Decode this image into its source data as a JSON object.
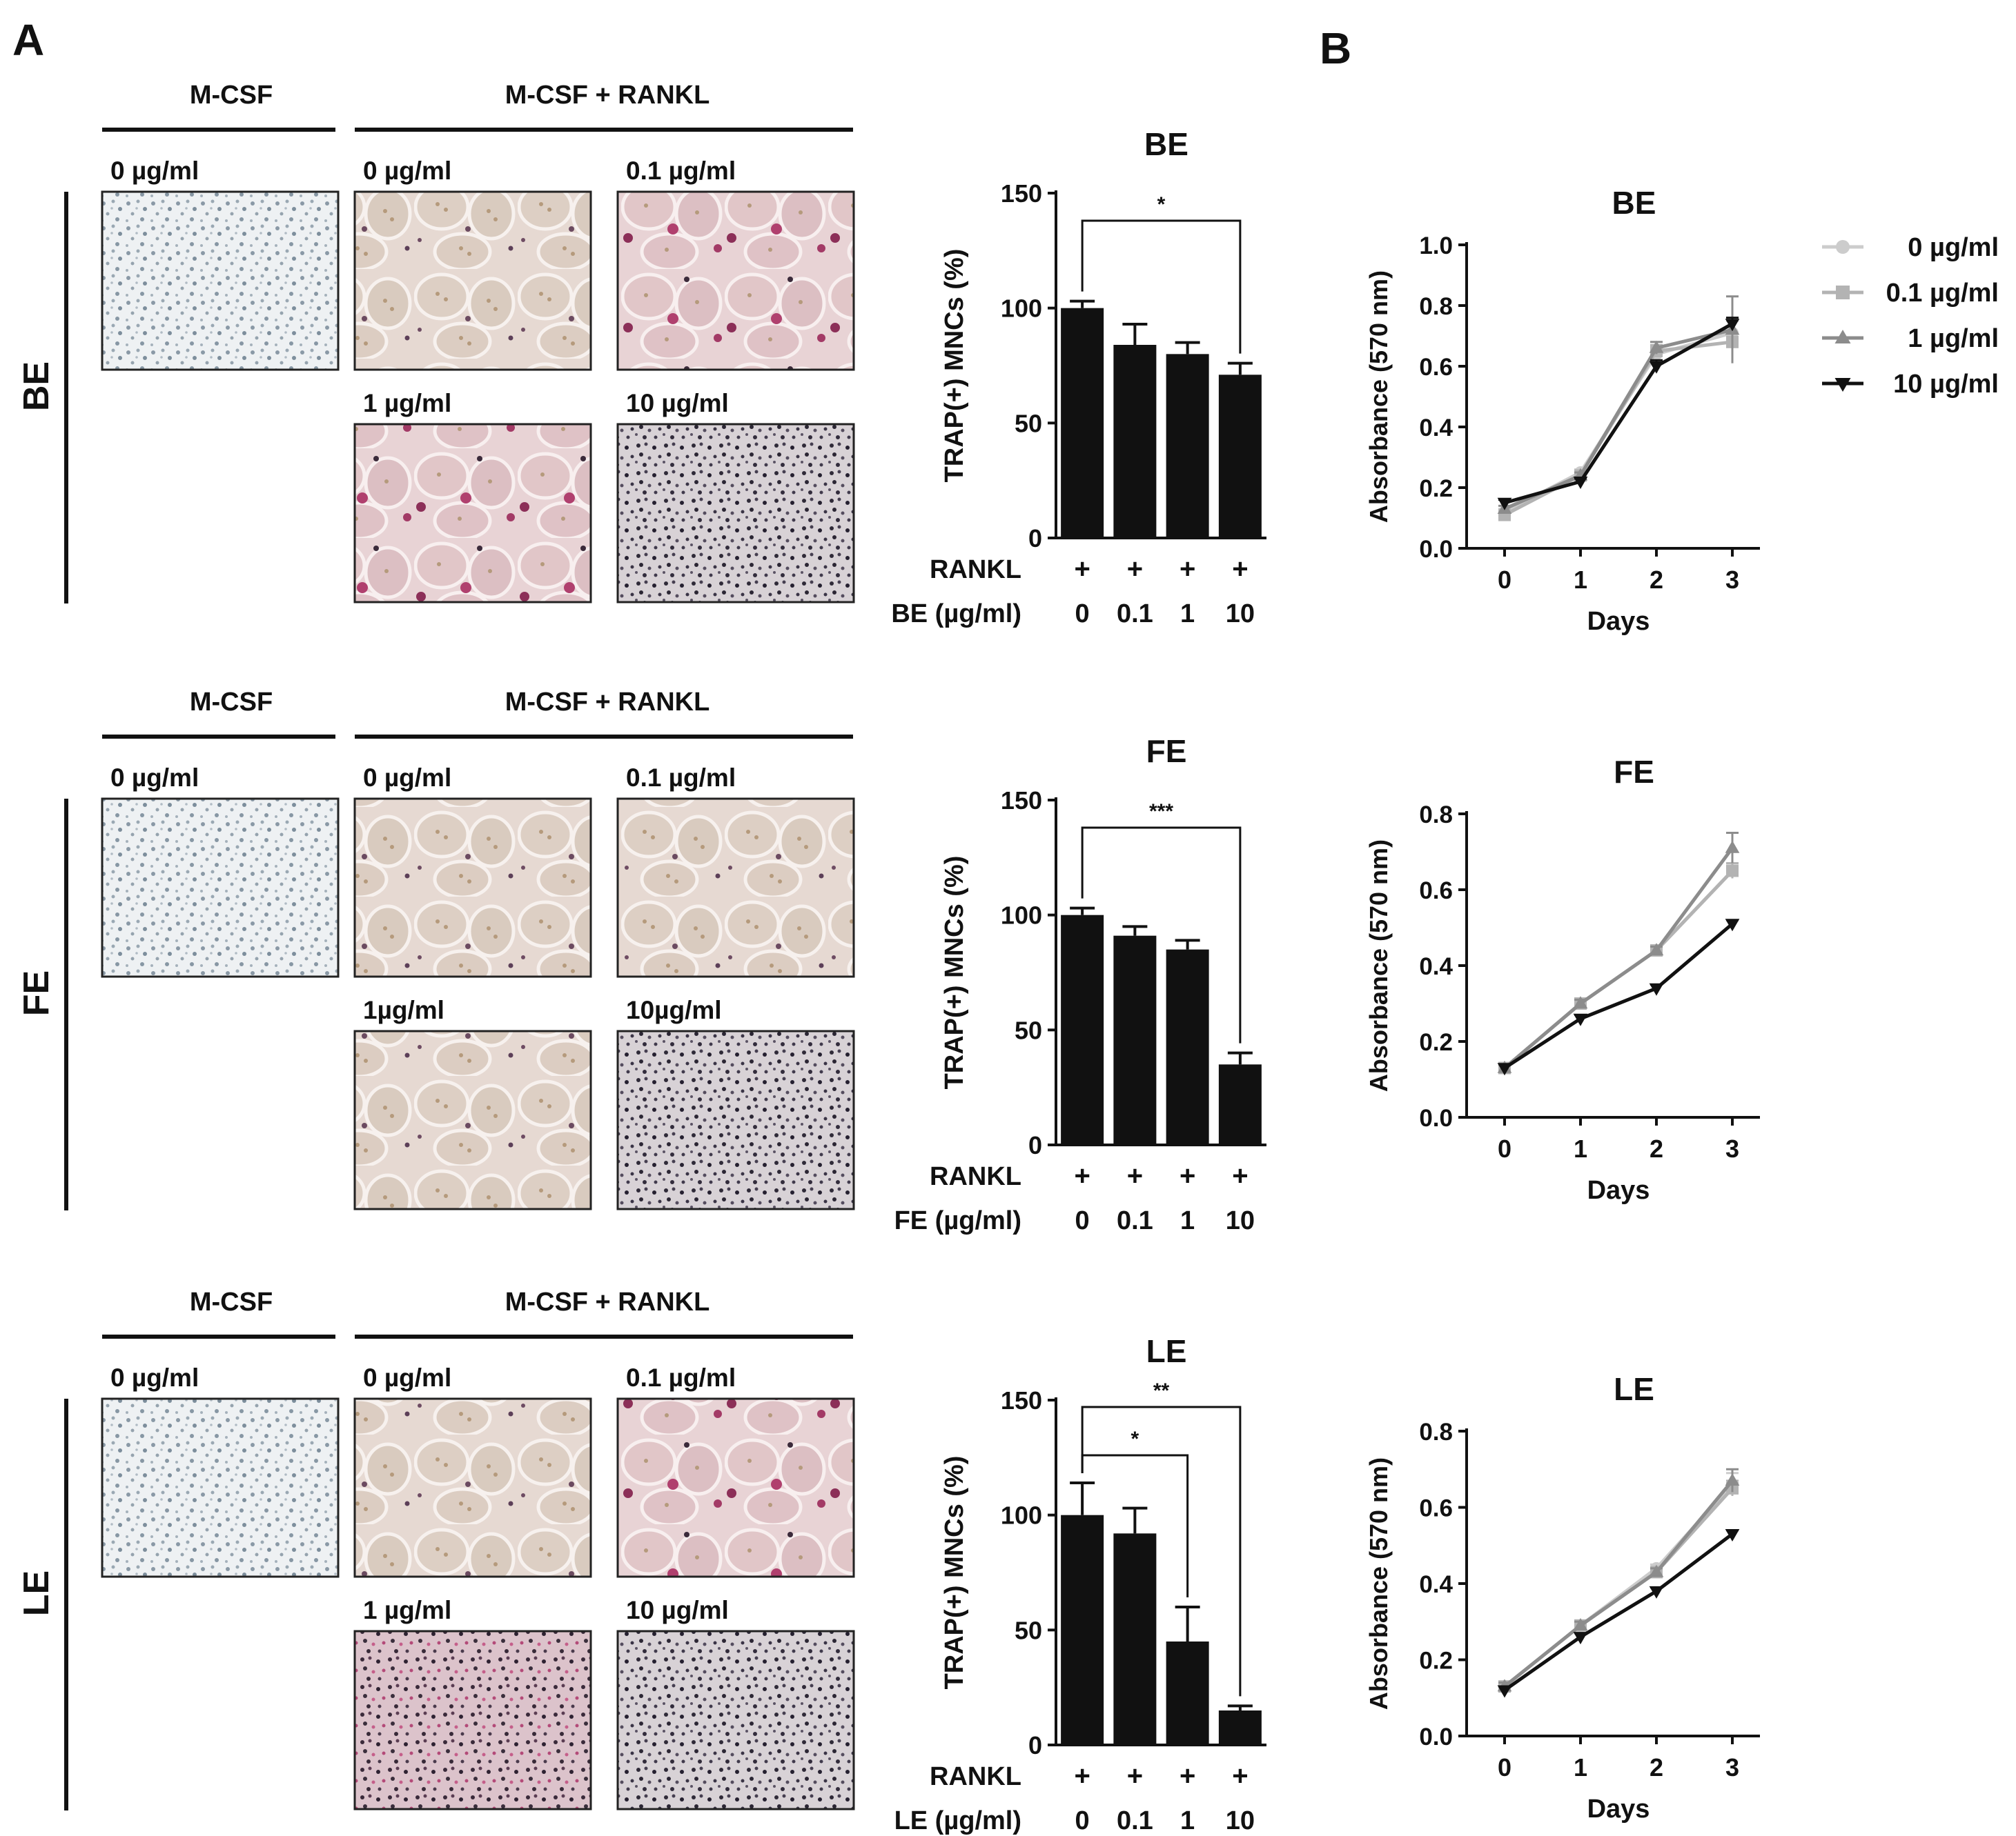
{
  "panel_a_label": "A",
  "panel_b_label": "B",
  "rows": [
    {
      "row_label": "BE",
      "mcsf_label": "M-CSF",
      "mcsf_rankl_label": "M-CSF + RANKL",
      "micrographs": [
        {
          "label": "0 µg/ml",
          "style": "plain"
        },
        {
          "label": "0 µg/ml",
          "style": "osteoclast"
        },
        {
          "label": "0.1 µg/ml",
          "style": "osteoclast-pink"
        },
        {
          "label": "1 µg/ml",
          "style": "osteoclast-pink"
        },
        {
          "label": "10 µg/ml",
          "style": "dense"
        }
      ],
      "bar_chart": {
        "type": "bar",
        "title": "BE",
        "ylabel": "TRAP(+) MNCs (%)",
        "ylim": [
          0,
          150
        ],
        "yticks": [
          "0",
          "50",
          "100",
          "150"
        ],
        "categories": [
          "0",
          "0.1",
          "1",
          "10"
        ],
        "values": [
          100,
          84,
          80,
          71
        ],
        "errors": [
          3,
          9,
          5,
          5
        ],
        "row1_label": "RANKL",
        "row1_values": [
          "+",
          "+",
          "+",
          "+"
        ],
        "row2_label": "BE (µg/ml)",
        "significance": [
          {
            "from": 0,
            "to": 3,
            "label": "*",
            "level": 0
          }
        ]
      },
      "line_chart": {
        "type": "line",
        "title": "BE",
        "ylabel": "Absorbance (570 nm)",
        "xlabel": "Days",
        "ylim": [
          0,
          1.0
        ],
        "yticks": [
          "0.0",
          "0.2",
          "0.4",
          "0.6",
          "0.8",
          "1.0"
        ],
        "x": [
          "0",
          "1",
          "2",
          "3"
        ],
        "series": [
          {
            "name": "0 µg/ml",
            "values": [
              0.12,
              0.25,
              0.64,
              0.71
            ],
            "errors": [
              0.01,
              0.01,
              0.02,
              0.04
            ],
            "color": "#cccccc",
            "marker": "circle"
          },
          {
            "name": "0.1 µg/ml",
            "values": [
              0.11,
              0.24,
              0.65,
              0.68
            ],
            "errors": [
              0.01,
              0.01,
              0.02,
              0.07
            ],
            "color": "#b3b3b3",
            "marker": "square"
          },
          {
            "name": "1 µg/ml",
            "values": [
              0.13,
              0.24,
              0.66,
              0.72
            ],
            "errors": [
              0.01,
              0.01,
              0.02,
              0.11
            ],
            "color": "#8c8c8c",
            "marker": "triangle-up"
          },
          {
            "name": "10 µg/ml",
            "values": [
              0.15,
              0.22,
              0.6,
              0.74
            ],
            "errors": [
              0.01,
              0.01,
              0.02,
              0.02
            ],
            "color": "#111111",
            "marker": "triangle-down"
          }
        ]
      }
    },
    {
      "row_label": "FE",
      "mcsf_label": "M-CSF",
      "mcsf_rankl_label": "M-CSF + RANKL",
      "micrographs": [
        {
          "label": "0 µg/ml",
          "style": "plain"
        },
        {
          "label": "0 µg/ml",
          "style": "osteoclast"
        },
        {
          "label": "0.1 µg/ml",
          "style": "osteoclast"
        },
        {
          "label": "1µg/ml",
          "style": "osteoclast-dense"
        },
        {
          "label": "10µg/ml",
          "style": "dense"
        }
      ],
      "bar_chart": {
        "type": "bar",
        "title": "FE",
        "ylabel": "TRAP(+) MNCs (%)",
        "ylim": [
          0,
          150
        ],
        "yticks": [
          "0",
          "50",
          "100",
          "150"
        ],
        "categories": [
          "0",
          "0.1",
          "1",
          "10"
        ],
        "values": [
          100,
          91,
          85,
          35
        ],
        "errors": [
          3,
          4,
          4,
          5
        ],
        "row1_label": "RANKL",
        "row1_values": [
          "+",
          "+",
          "+",
          "+"
        ],
        "row2_label": "FE (µg/ml)",
        "significance": [
          {
            "from": 0,
            "to": 3,
            "label": "***",
            "level": 0
          }
        ]
      },
      "line_chart": {
        "type": "line",
        "title": "FE",
        "ylabel": "Absorbance (570 nm)",
        "xlabel": "Days",
        "ylim": [
          0,
          0.8
        ],
        "yticks": [
          "0.0",
          "0.2",
          "0.4",
          "0.6",
          "0.8"
        ],
        "x": [
          "0",
          "1",
          "2",
          "3"
        ],
        "series": [
          {
            "name": "0 µg/ml",
            "values": [
              0.13,
              0.3,
              0.44,
              0.65
            ],
            "errors": [
              0.01,
              0.01,
              0.01,
              0.02
            ],
            "color": "#cccccc",
            "marker": "circle"
          },
          {
            "name": "0.1 µg/ml",
            "values": [
              0.13,
              0.3,
              0.44,
              0.65
            ],
            "errors": [
              0.01,
              0.01,
              0.01,
              0.02
            ],
            "color": "#b3b3b3",
            "marker": "square"
          },
          {
            "name": "1 µg/ml",
            "values": [
              0.13,
              0.3,
              0.44,
              0.71
            ],
            "errors": [
              0.01,
              0.01,
              0.01,
              0.04
            ],
            "color": "#8c8c8c",
            "marker": "triangle-up"
          },
          {
            "name": "10 µg/ml",
            "values": [
              0.13,
              0.26,
              0.34,
              0.51
            ],
            "errors": [
              0.01,
              0.01,
              0.01,
              0.01
            ],
            "color": "#111111",
            "marker": "triangle-down"
          }
        ]
      }
    },
    {
      "row_label": "LE",
      "mcsf_label": "M-CSF",
      "mcsf_rankl_label": "M-CSF + RANKL",
      "micrographs": [
        {
          "label": "0 µg/ml",
          "style": "plain"
        },
        {
          "label": "0 µg/ml",
          "style": "osteoclast"
        },
        {
          "label": "0.1 µg/ml",
          "style": "osteoclast-pink"
        },
        {
          "label": "1 µg/ml",
          "style": "dense-pink"
        },
        {
          "label": "10 µg/ml",
          "style": "dense"
        }
      ],
      "bar_chart": {
        "type": "bar",
        "title": "LE",
        "ylabel": "TRAP(+) MNCs (%)",
        "ylim": [
          0,
          150
        ],
        "yticks": [
          "0",
          "50",
          "100",
          "150"
        ],
        "categories": [
          "0",
          "0.1",
          "1",
          "10"
        ],
        "values": [
          100,
          92,
          45,
          15
        ],
        "errors": [
          14,
          11,
          15,
          2
        ],
        "row1_label": "RANKL",
        "row1_values": [
          "+",
          "+",
          "+",
          "+"
        ],
        "row2_label": "LE (µg/ml)",
        "significance": [
          {
            "from": 0,
            "to": 2,
            "label": "*",
            "level": 0
          },
          {
            "from": 0,
            "to": 3,
            "label": "**",
            "level": 1
          }
        ]
      },
      "line_chart": {
        "type": "line",
        "title": "LE",
        "ylabel": "Absorbance (570 nm)",
        "xlabel": "Days",
        "ylim": [
          0,
          0.8
        ],
        "yticks": [
          "0.0",
          "0.2",
          "0.4",
          "0.6",
          "0.8"
        ],
        "x": [
          "0",
          "1",
          "2",
          "3"
        ],
        "series": [
          {
            "name": "0 µg/ml",
            "values": [
              0.13,
              0.29,
              0.44,
              0.66
            ],
            "errors": [
              0.01,
              0.01,
              0.01,
              0.03
            ],
            "color": "#cccccc",
            "marker": "circle"
          },
          {
            "name": "0.1 µg/ml",
            "values": [
              0.13,
              0.29,
              0.43,
              0.65
            ],
            "errors": [
              0.01,
              0.01,
              0.01,
              0.02
            ],
            "color": "#b3b3b3",
            "marker": "square"
          },
          {
            "name": "1 µg/ml",
            "values": [
              0.13,
              0.29,
              0.43,
              0.67
            ],
            "errors": [
              0.01,
              0.01,
              0.01,
              0.03
            ],
            "color": "#8c8c8c",
            "marker": "triangle-up"
          },
          {
            "name": "10 µg/ml",
            "values": [
              0.12,
              0.26,
              0.38,
              0.53
            ],
            "errors": [
              0.01,
              0.01,
              0.01,
              0.01
            ],
            "color": "#111111",
            "marker": "triangle-down"
          }
        ]
      }
    }
  ],
  "legend": [
    {
      "label": "0 µg/ml",
      "color": "#cccccc",
      "marker": "circle"
    },
    {
      "label": "0.1 µg/ml",
      "color": "#b3b3b3",
      "marker": "square"
    },
    {
      "label": "1 µg/ml",
      "color": "#8c8c8c",
      "marker": "triangle-up"
    },
    {
      "label": "10 µg/ml",
      "color": "#111111",
      "marker": "triangle-down"
    }
  ]
}
